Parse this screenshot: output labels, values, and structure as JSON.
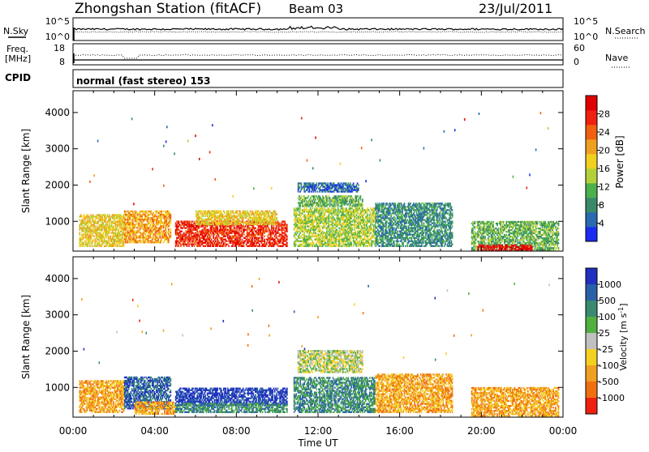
{
  "header": {
    "station": "Zhongshan Station (fitACF)",
    "beam": "Beam 03",
    "date": "23/Jul/2011"
  },
  "strip_sky": {
    "left_label": "N.Sky",
    "left_ticks": [
      "10^5",
      "10^0"
    ],
    "right_label": "N.Search",
    "right_ticks": [
      "10^5",
      "10^0"
    ]
  },
  "strip_freq": {
    "left_label_1": "Freq.",
    "left_label_2": "[MHz]",
    "left_ticks": [
      "18",
      "8"
    ],
    "right_label": "Nave",
    "right_ticks": [
      "60",
      "0"
    ]
  },
  "cpid": {
    "label": "CPID",
    "mode": "normal (fast stereo) 153"
  },
  "x_axis": {
    "ticks": [
      "00:00",
      "04:00",
      "08:00",
      "12:00",
      "16:00",
      "20:00",
      "00:00"
    ],
    "title": "Time UT"
  },
  "chart_data": [
    {
      "type": "heatmap",
      "panel": "power",
      "ylabel": "Slant Range [km]",
      "yticks": [
        "1000",
        "2000",
        "3000",
        "4000"
      ],
      "ylim": [
        180,
        4600
      ],
      "xlim": [
        0,
        24
      ],
      "colorbar": {
        "label": "Power [dB]",
        "ticks": [
          "4",
          "8",
          "12",
          "16",
          "20",
          "24",
          "28"
        ],
        "range": [
          0,
          32
        ],
        "colors": [
          "#1a2cf0",
          "#2a6ab0",
          "#3a8a6a",
          "#4cb04c",
          "#b4d038",
          "#f2d020",
          "#f0a020",
          "#f06010",
          "#f02010",
          "#e00000"
        ]
      },
      "clusters": [
        {
          "t0": 0.3,
          "t1": 2.5,
          "r0": 300,
          "r1": 1200,
          "level": 5
        },
        {
          "t0": 2.5,
          "t1": 4.8,
          "r0": 400,
          "r1": 1300,
          "level": 6
        },
        {
          "t0": 5.0,
          "t1": 10.5,
          "r0": 300,
          "r1": 1000,
          "level": 8
        },
        {
          "t0": 6.0,
          "t1": 10.0,
          "r0": 900,
          "r1": 1300,
          "level": 5
        },
        {
          "t0": 10.8,
          "t1": 14.8,
          "r0": 300,
          "r1": 1400,
          "level": 4
        },
        {
          "t0": 11.0,
          "t1": 14.2,
          "r0": 1400,
          "r1": 1700,
          "level": 3
        },
        {
          "t0": 11.0,
          "t1": 14.0,
          "r0": 1800,
          "r1": 2050,
          "level": 1
        },
        {
          "t0": 14.8,
          "t1": 18.6,
          "r0": 300,
          "r1": 1500,
          "level": 2
        },
        {
          "t0": 19.5,
          "t1": 23.8,
          "r0": 200,
          "r1": 1000,
          "level": 3
        },
        {
          "t0": 19.8,
          "t1": 22.5,
          "r0": 180,
          "r1": 350,
          "level": 9
        }
      ]
    },
    {
      "type": "heatmap",
      "panel": "velocity",
      "ylabel": "Slant Range [km]",
      "yticks": [
        "1000",
        "2000",
        "3000",
        "4000"
      ],
      "ylim": [
        180,
        4600
      ],
      "xlim": [
        0,
        24
      ],
      "colorbar": {
        "label": "Velocity [m s-1]",
        "ticks": [
          "1000",
          "500",
          "100",
          "25",
          "-25",
          "-100",
          "-500",
          "-1000"
        ],
        "colors": [
          "#2030c0",
          "#2a60a8",
          "#3a8a70",
          "#50b040",
          "#c0c0c0",
          "#f4d020",
          "#f0a020",
          "#f07010",
          "#f02010"
        ]
      },
      "clusters": [
        {
          "t0": 0.3,
          "t1": 2.5,
          "r0": 300,
          "r1": 1200,
          "level": 6
        },
        {
          "t0": 2.5,
          "t1": 4.8,
          "r0": 400,
          "r1": 1300,
          "level": 1
        },
        {
          "t0": 3.0,
          "t1": 5.0,
          "r0": 250,
          "r1": 600,
          "level": 6
        },
        {
          "t0": 5.0,
          "t1": 10.5,
          "r0": 500,
          "r1": 1000,
          "level": 0
        },
        {
          "t0": 5.0,
          "t1": 10.5,
          "r0": 300,
          "r1": 550,
          "level": 2
        },
        {
          "t0": 10.8,
          "t1": 14.8,
          "r0": 300,
          "r1": 1300,
          "level": 2
        },
        {
          "t0": 11.0,
          "t1": 14.2,
          "r0": 1400,
          "r1": 2050,
          "level": 4
        },
        {
          "t0": 14.8,
          "t1": 18.6,
          "r0": 300,
          "r1": 1400,
          "level": 6
        },
        {
          "t0": 19.5,
          "t1": 23.8,
          "r0": 200,
          "r1": 1000,
          "level": 6
        }
      ]
    }
  ]
}
